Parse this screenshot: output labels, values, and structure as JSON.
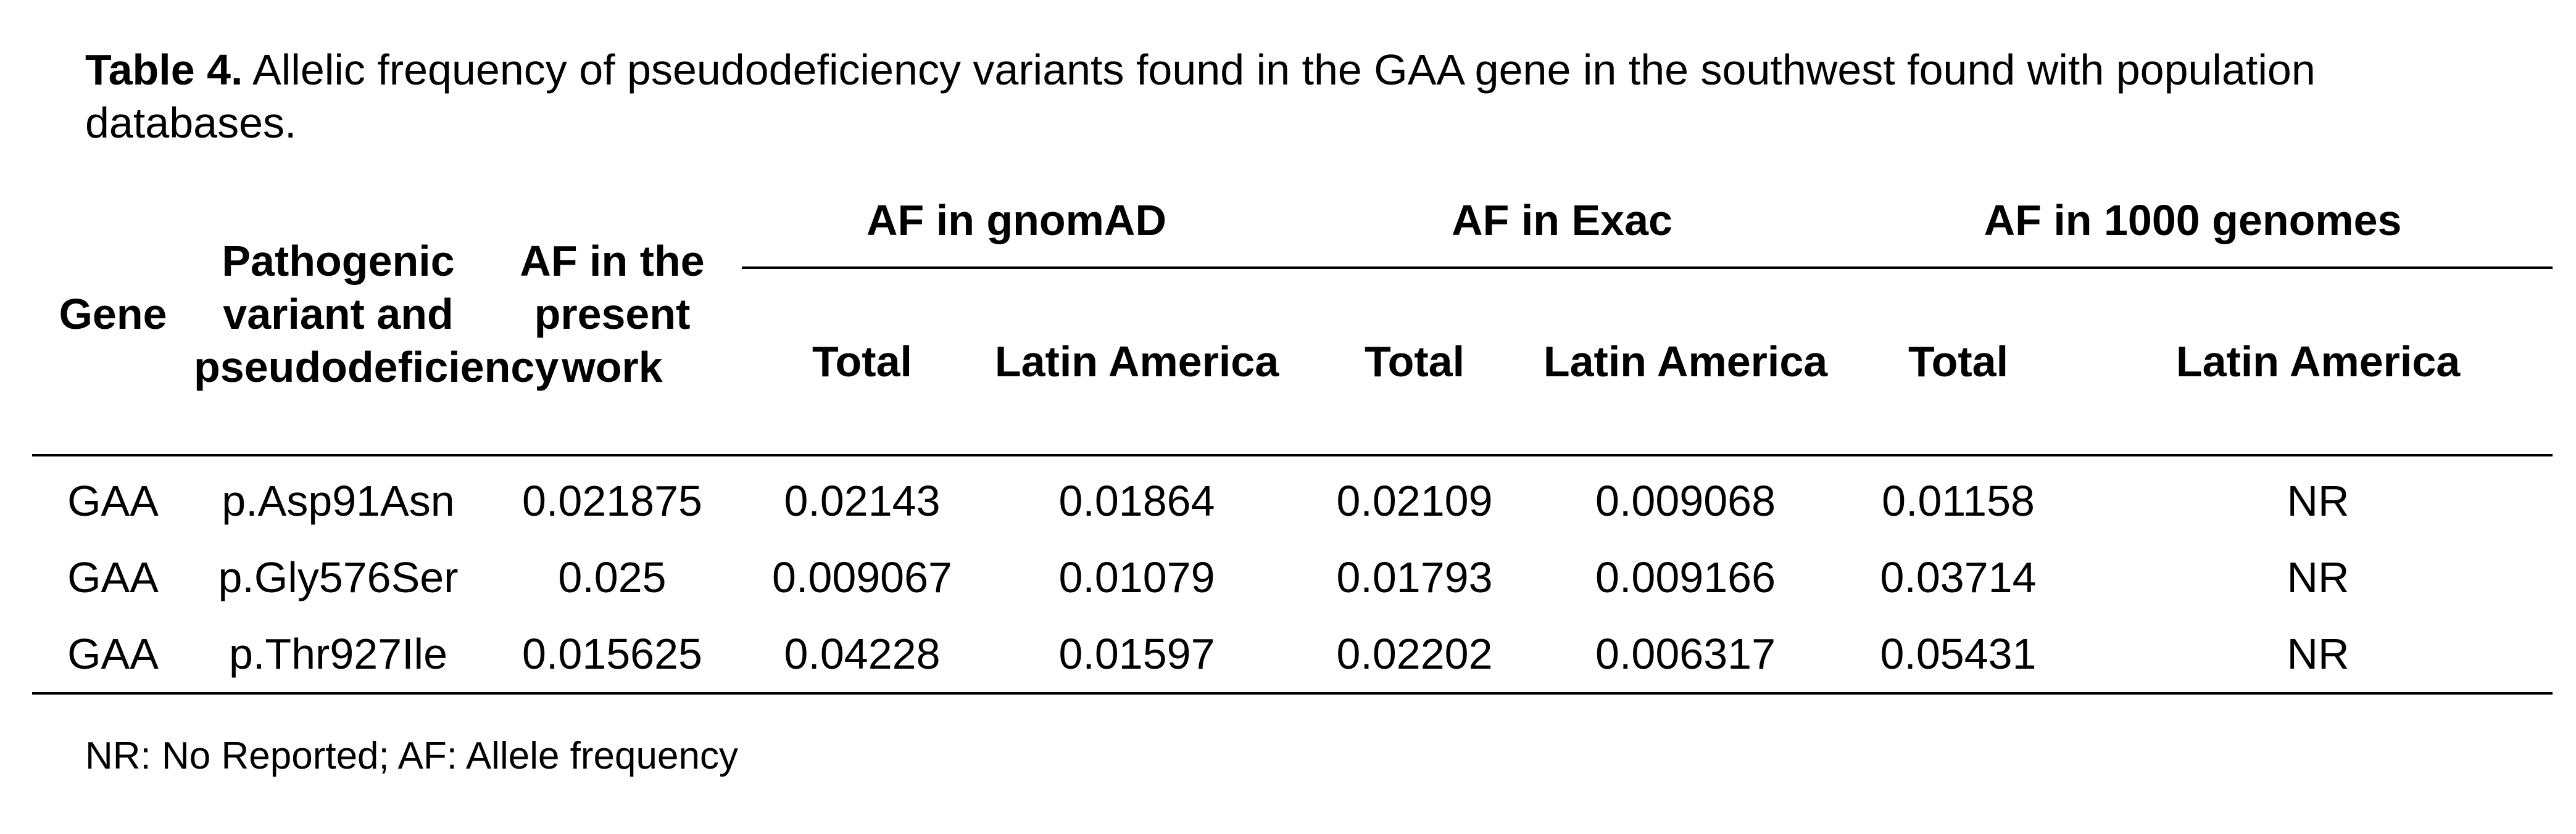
{
  "caption": {
    "label": "Table 4.",
    "text": "Allelic frequency of pseudodeficiency variants found in the GAA gene in the southwest found with population databases."
  },
  "table": {
    "headers": {
      "gene": "Gene",
      "variant": "Pathogenic variant and pseudodeficiency",
      "af_present": "AF in the present work",
      "gnomad": "AF in gnomAD",
      "exac": "AF in Exac",
      "g1000": "AF in 1000 genomes",
      "total": "Total",
      "latin": "Latin America"
    },
    "rows": [
      [
        "GAA",
        "p.Asp91Asn",
        "0.021875",
        "0.02143",
        "0.01864",
        "0.02109",
        "0.009068",
        "0.01158",
        "NR"
      ],
      [
        "GAA",
        "p.Gly576Ser",
        "0.025",
        "0.009067",
        "0.01079",
        "0.01793",
        "0.009166",
        "0.03714",
        "NR"
      ],
      [
        "GAA",
        "p.Thr927Ile",
        "0.015625",
        "0.04228",
        "0.01597",
        "0.02202",
        "0.006317",
        "0.05431",
        "NR"
      ]
    ]
  },
  "footnote": "NR: No Reported; AF: Allele frequency"
}
